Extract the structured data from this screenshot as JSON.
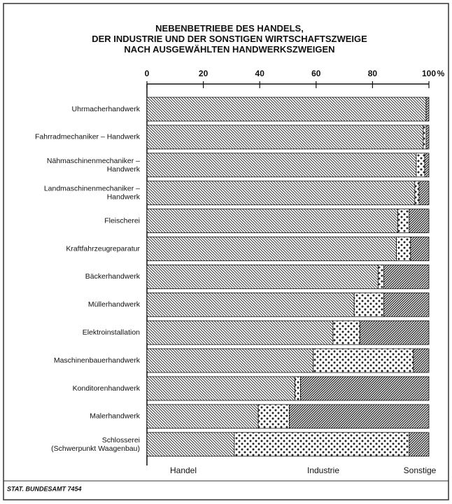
{
  "chart_data": {
    "type": "stacked-barh",
    "title": "NEBENBETRIEBE DES HANDELS,\nDER INDUSTRIE UND DER SONSTIGEN WIRTSCHAFTSZWEIGE\nNACH AUSGEWÄHLTEN HANDWERKSZWEIGEN",
    "x_unit": "%",
    "source": "STAT. BUNDESAMT 7454",
    "xlim": [
      0,
      100
    ],
    "xticks": [
      0,
      20,
      40,
      60,
      80,
      100
    ],
    "categories": [
      "Uhrmacherhandwerk",
      "Fahrradmechaniker – Handwerk",
      "Nähmaschinenmechaniker –\nHandwerk",
      "Landmaschinenmechaniker –\nHandwerk",
      "Fleischerei",
      "Kraftfahrzeugreparatur",
      "Bäckerhandwerk",
      "Müllerhandwerk",
      "Elektroinstallation",
      "Maschinenbauerhandwerk",
      "Konditorenhandwerk",
      "Malerhandwerk",
      "Schlosserei\n(Schwerpunkt Waagenbau)"
    ],
    "series": [
      {
        "name": "Handel",
        "color": "#222222",
        "pattern": "hatch-fine",
        "values": [
          99,
          98,
          95.5,
          95,
          89,
          88.5,
          82,
          73.5,
          66,
          59,
          52.5,
          39.5,
          31
        ]
      },
      {
        "name": "Industrie",
        "color": "#222222",
        "pattern": "dots",
        "values": [
          0,
          1,
          3,
          1.5,
          4,
          5,
          2,
          10.5,
          9.5,
          35.5,
          2,
          11,
          62
        ]
      },
      {
        "name": "Sonstige",
        "color": "#222222",
        "pattern": "hatch-dense",
        "values": [
          1,
          1,
          1.5,
          3.5,
          7,
          6.5,
          16,
          16,
          24.5,
          5.5,
          45.5,
          49.5,
          7
        ]
      }
    ]
  }
}
